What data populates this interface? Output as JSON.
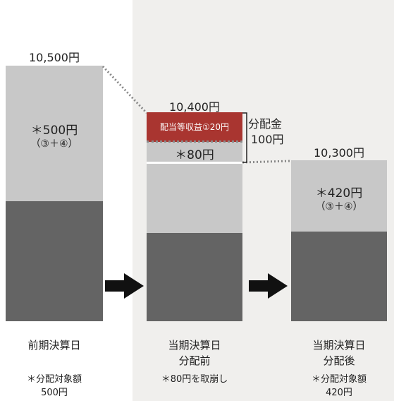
{
  "colors": {
    "panel_bg": "#f0efed",
    "bar_light": "#c8c8c8",
    "bar_dark": "#646464",
    "band_red": "#a93530",
    "arrow": "#111111",
    "connector": "#888888"
  },
  "columns": {
    "before": {
      "price": "10,500円",
      "inner_value": "＊500円",
      "inner_sub": "（③＋④）",
      "date_label": "前期決算日",
      "note_line1": "＊分配対象額",
      "note_line2": "500円"
    },
    "pre_distribution": {
      "price": "10,400円",
      "red_band": "配当等収益①20円",
      "inner_value": "＊80円",
      "date_line1": "当期決算日",
      "date_line2": "分配前",
      "note": "＊80円を取崩し"
    },
    "post_distribution": {
      "price": "10,300円",
      "inner_value": "＊420円",
      "inner_sub": "（③＋④）",
      "date_line1": "当期決算日",
      "date_line2": "分配後",
      "note_line1": "＊分配対象額",
      "note_line2": "420円"
    }
  },
  "distribution": {
    "label_line1": "分配金",
    "label_line2": "100円"
  },
  "icons": [
    "right-arrow-icon",
    "right-arrow-icon"
  ]
}
